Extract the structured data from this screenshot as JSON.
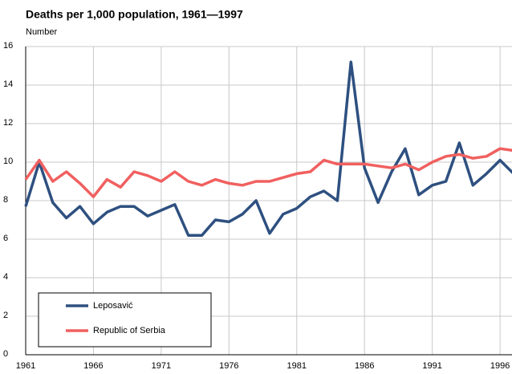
{
  "chart_data": {
    "type": "line",
    "title": "Deaths per 1,000 population, 1961—1997",
    "subtitle": "Number",
    "x": [
      1961,
      1962,
      1963,
      1964,
      1965,
      1966,
      1967,
      1968,
      1969,
      1970,
      1971,
      1972,
      1973,
      1974,
      1975,
      1976,
      1977,
      1978,
      1979,
      1980,
      1981,
      1982,
      1983,
      1984,
      1985,
      1986,
      1987,
      1988,
      1989,
      1990,
      1991,
      1992,
      1993,
      1994,
      1995,
      1996,
      1997
    ],
    "series": [
      {
        "name": "Leposavić",
        "color": "#2e5080",
        "values": [
          7.7,
          10.0,
          7.9,
          7.1,
          7.7,
          6.8,
          7.4,
          7.7,
          7.7,
          7.2,
          7.5,
          7.8,
          6.2,
          6.2,
          7.0,
          6.9,
          7.3,
          8.0,
          6.3,
          7.3,
          7.6,
          8.2,
          8.5,
          8.0,
          15.2,
          9.7,
          7.9,
          9.5,
          10.7,
          8.3,
          8.8,
          9.0,
          11.0,
          8.8,
          9.4,
          10.1,
          9.4
        ]
      },
      {
        "name": "Republic of Serbia",
        "color": "#f0605f",
        "values": [
          9.1,
          10.1,
          9.0,
          9.5,
          8.9,
          8.2,
          9.1,
          8.7,
          9.5,
          9.3,
          9.0,
          9.5,
          9.0,
          8.8,
          9.1,
          8.9,
          8.8,
          9.0,
          9.0,
          9.2,
          9.4,
          9.5,
          10.1,
          9.9,
          9.9,
          9.9,
          9.8,
          9.7,
          9.9,
          9.6,
          10.0,
          10.3,
          10.4,
          10.2,
          10.3,
          10.7,
          10.6
        ]
      }
    ],
    "xlim": [
      1961,
      1997
    ],
    "xticks": [
      1961,
      1966,
      1971,
      1976,
      1981,
      1986,
      1991,
      1996
    ],
    "ylim": [
      0,
      16
    ],
    "yticks": [
      0,
      2,
      4,
      6,
      8,
      10,
      12,
      14,
      16
    ],
    "grid": true,
    "legend": "lower left"
  }
}
